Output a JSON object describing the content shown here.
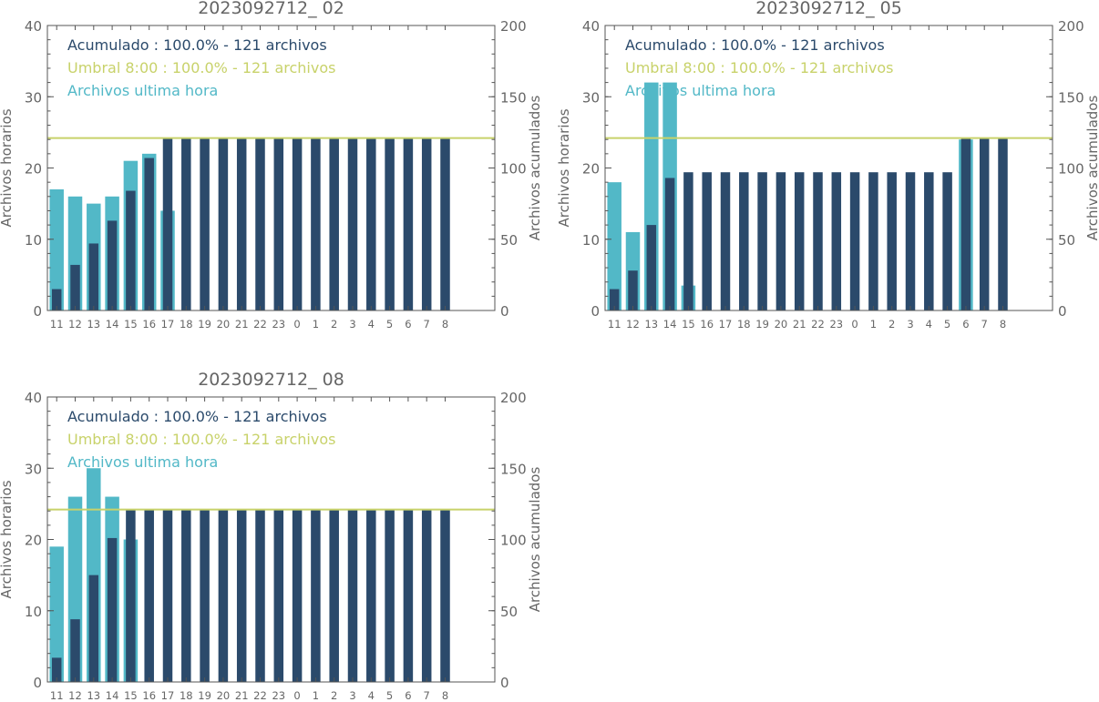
{
  "colors": {
    "hourly": "#52b8c7",
    "cumulative": "#2b4a6b",
    "threshold": "#c8d26a",
    "axis": "#555555",
    "text": "#666666"
  },
  "chart_data": [
    {
      "type": "bar",
      "title": "2023092712_ 02",
      "ylabel_left": "Archivos horarios",
      "ylabel_right": "Archivos acumulados",
      "ylim_left": [
        0,
        40
      ],
      "ylim_right": [
        0,
        200
      ],
      "yticks_left": [
        "0",
        "10",
        "20",
        "30",
        "40"
      ],
      "yticks_right": [
        "0",
        "50",
        "100",
        "150",
        "200"
      ],
      "categories": [
        "11",
        "12",
        "13",
        "14",
        "15",
        "16",
        "17",
        "18",
        "19",
        "20",
        "21",
        "22",
        "23",
        "0",
        "1",
        "2",
        "3",
        "4",
        "5",
        "6",
        "7",
        "8"
      ],
      "legend": {
        "cumulative": "Acumulado : 100.0% - 121 archivos",
        "threshold": "Umbral 8:00 : 100.0% - 121 archivos",
        "hourly": "Archivos ultima hora"
      },
      "series": [
        {
          "name": "Archivos ultima hora",
          "axis": "left",
          "values": [
            17,
            16,
            15,
            16,
            21,
            22,
            14,
            null,
            null,
            null,
            null,
            null,
            null,
            null,
            null,
            null,
            null,
            null,
            null,
            null,
            null,
            null
          ]
        },
        {
          "name": "Acumulado",
          "axis": "right",
          "values": [
            15,
            32,
            47,
            63,
            84,
            107,
            121,
            121,
            121,
            121,
            121,
            121,
            121,
            121,
            121,
            121,
            121,
            121,
            121,
            121,
            121,
            121
          ]
        }
      ],
      "threshold_value": 121,
      "grid": false
    },
    {
      "type": "bar",
      "title": "2023092712_ 05",
      "ylabel_left": "Archivos horarios",
      "ylabel_right": "Archivos acumulados",
      "ylim_left": [
        0,
        40
      ],
      "ylim_right": [
        0,
        200
      ],
      "yticks_left": [
        "0",
        "10",
        "20",
        "30",
        "40"
      ],
      "yticks_right": [
        "0",
        "50",
        "100",
        "150",
        "200"
      ],
      "categories": [
        "11",
        "12",
        "13",
        "14",
        "15",
        "16",
        "17",
        "18",
        "19",
        "20",
        "21",
        "22",
        "23",
        "0",
        "1",
        "2",
        "3",
        "4",
        "5",
        "6",
        "7",
        "8"
      ],
      "legend": {
        "cumulative": "Acumulado : 100.0% - 121 archivos",
        "threshold": "Umbral 8:00 : 100.0% - 121 archivos",
        "hourly": "Archivos ultima hora"
      },
      "series": [
        {
          "name": "Archivos ultima hora",
          "axis": "left",
          "values": [
            18,
            11,
            32,
            32,
            3.5,
            null,
            null,
            null,
            null,
            null,
            null,
            null,
            null,
            null,
            null,
            null,
            null,
            null,
            null,
            24,
            null,
            null
          ]
        },
        {
          "name": "Acumulado",
          "axis": "right",
          "values": [
            15,
            28,
            60,
            93,
            97,
            97,
            97,
            97,
            97,
            97,
            97,
            97,
            97,
            97,
            97,
            97,
            97,
            97,
            97,
            121,
            121,
            121
          ]
        }
      ],
      "threshold_value": 121,
      "grid": false
    },
    {
      "type": "bar",
      "title": "2023092712_ 08",
      "ylabel_left": "Archivos horarios",
      "ylabel_right": "Archivos acumulados",
      "ylim_left": [
        0,
        40
      ],
      "ylim_right": [
        0,
        200
      ],
      "yticks_left": [
        "0",
        "10",
        "20",
        "30",
        "40"
      ],
      "yticks_right": [
        "0",
        "50",
        "100",
        "150",
        "200"
      ],
      "categories": [
        "11",
        "12",
        "13",
        "14",
        "15",
        "16",
        "17",
        "18",
        "19",
        "20",
        "21",
        "22",
        "23",
        "0",
        "1",
        "2",
        "3",
        "4",
        "5",
        "6",
        "7",
        "8"
      ],
      "legend": {
        "cumulative": "Acumulado : 100.0% - 121 archivos",
        "threshold": "Umbral 8:00 : 100.0% - 121 archivos",
        "hourly": "Archivos ultima hora"
      },
      "series": [
        {
          "name": "Archivos ultima hora",
          "axis": "left",
          "values": [
            19,
            26,
            30,
            26,
            20,
            null,
            null,
            null,
            null,
            null,
            null,
            null,
            null,
            null,
            null,
            null,
            null,
            null,
            null,
            null,
            null,
            null
          ]
        },
        {
          "name": "Acumulado",
          "axis": "right",
          "values": [
            17,
            44,
            75,
            101,
            121,
            121,
            121,
            121,
            121,
            121,
            121,
            121,
            121,
            121,
            121,
            121,
            121,
            121,
            121,
            121,
            121,
            121
          ]
        }
      ],
      "threshold_value": 121,
      "grid": false
    }
  ]
}
